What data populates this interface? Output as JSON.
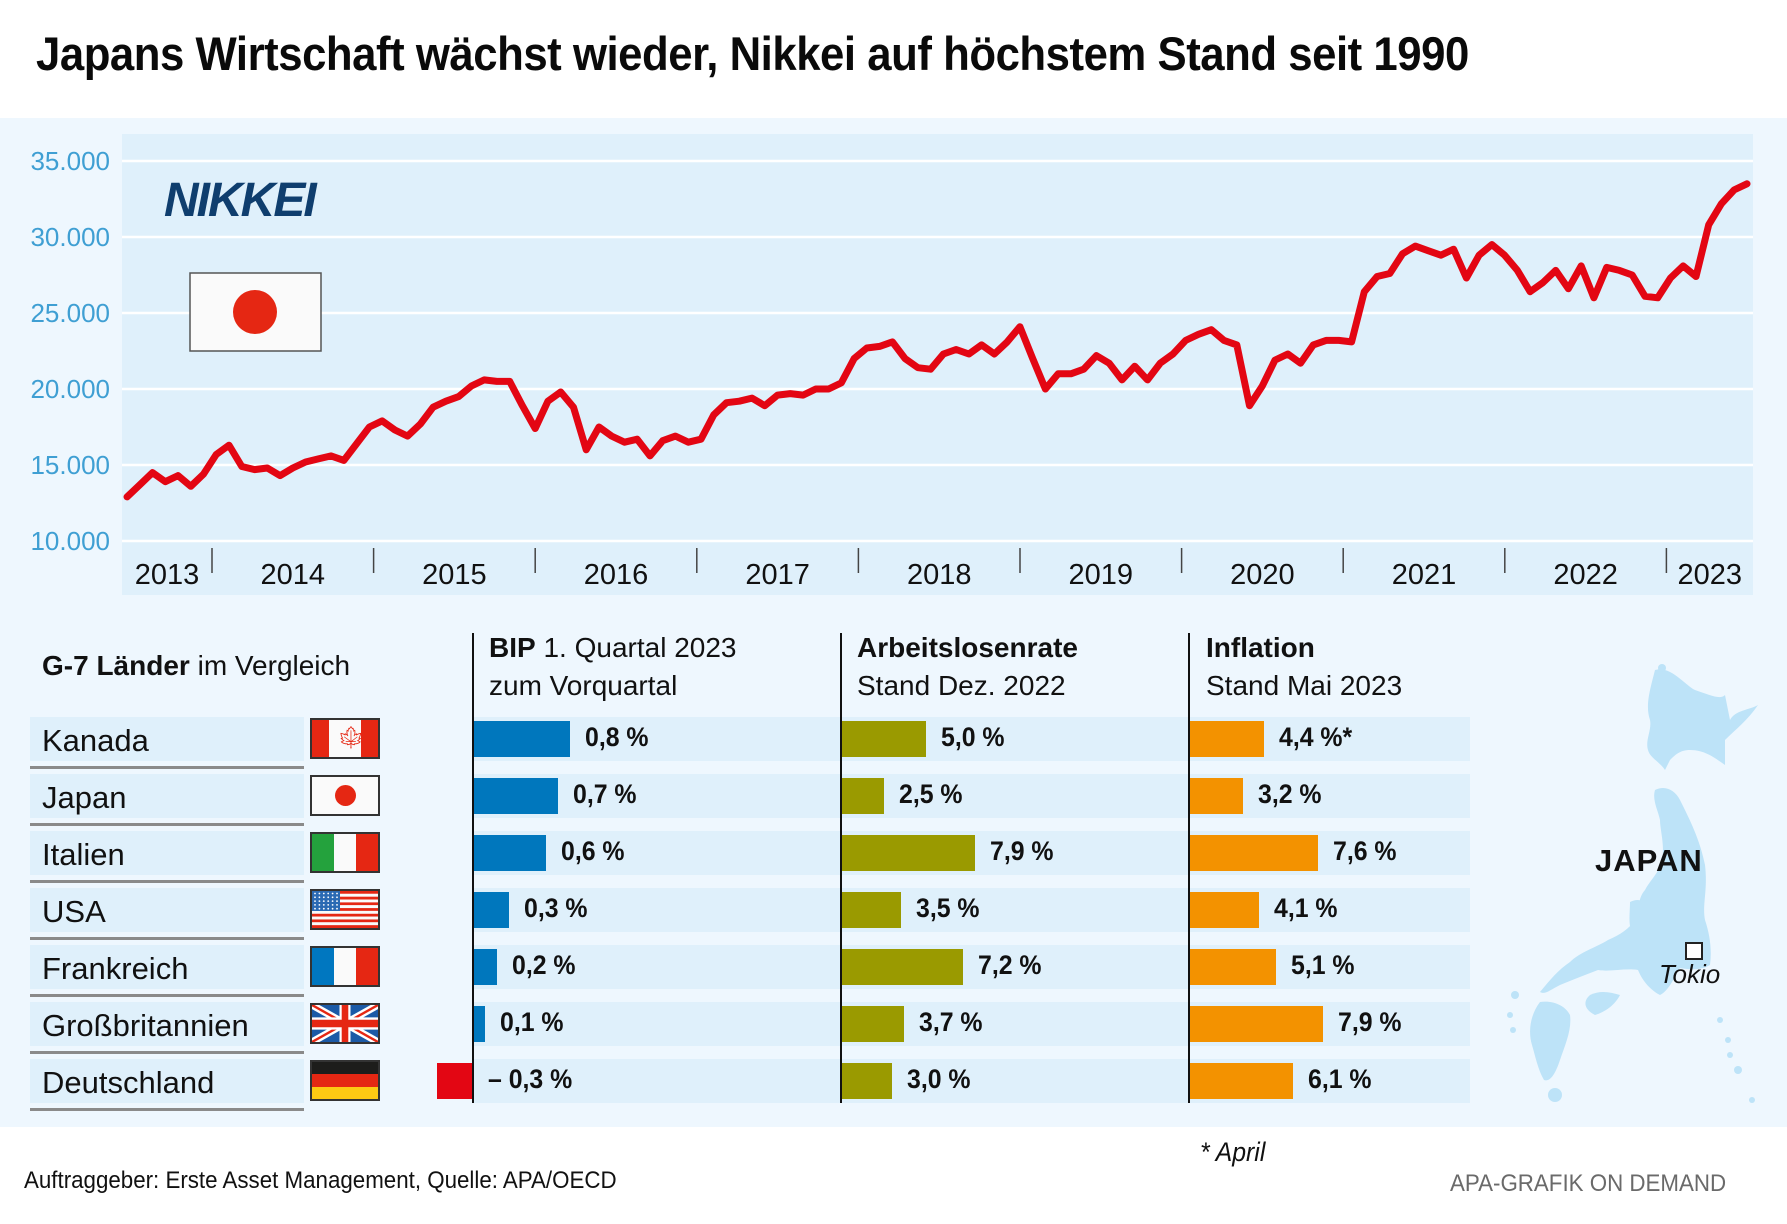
{
  "title": "Japans Wirtschaft wächst wieder, Nikkei auf höchstem Stand seit 1990",
  "logo_text": "NIKKEI",
  "colors": {
    "line": "#e30613",
    "bip": "#0077bd",
    "bip_negative": "#e30613",
    "unemployment": "#9a9a00",
    "inflation": "#f39200",
    "logo": "#0f3e6e",
    "axis_labels": "#3f9fd3"
  },
  "chart_data": {
    "type": "line",
    "title": "NIKKEI",
    "xlabel": "",
    "ylabel": "",
    "ylim": [
      10000,
      35000
    ],
    "yticks": [
      10000,
      15000,
      20000,
      25000,
      30000,
      35000
    ],
    "ytick_labels": [
      "10.000",
      "15.000",
      "20.000",
      "25.000",
      "30.000",
      "35.000"
    ],
    "xticks": [
      "2013",
      "2014",
      "2015",
      "2016",
      "2017",
      "2018",
      "2019",
      "2020",
      "2021",
      "2022",
      "2023"
    ],
    "grid": true,
    "legend": "none",
    "x_start": "2013-06",
    "x_end": "2023-06",
    "frequency": "monthly",
    "series": [
      {
        "name": "Nikkei 225",
        "values": [
          12900,
          13700,
          14500,
          13900,
          14300,
          13600,
          14400,
          15700,
          16300,
          14900,
          14700,
          14800,
          14300,
          14800,
          15200,
          15400,
          15600,
          15300,
          16400,
          17500,
          17900,
          17300,
          16900,
          17700,
          18800,
          19200,
          19500,
          20200,
          20600,
          20500,
          20500,
          18900,
          17400,
          19200,
          19800,
          18800,
          16000,
          17500,
          16900,
          16500,
          16700,
          15600,
          16600,
          16900,
          16500,
          16700,
          18300,
          19100,
          19200,
          19400,
          18900,
          19600,
          19700,
          19600,
          20000,
          20000,
          20400,
          22000,
          22700,
          22800,
          23100,
          22000,
          21400,
          21300,
          22300,
          22600,
          22300,
          22900,
          22300,
          23100,
          24100,
          22000,
          20000,
          21000,
          21000,
          21300,
          22200,
          21700,
          20600,
          21500,
          20600,
          21700,
          22300,
          23200,
          23600,
          23900,
          23200,
          22900,
          18900,
          20200,
          21900,
          22300,
          21700,
          22900,
          23200,
          23200,
          23100,
          26400,
          27400,
          27600,
          28900,
          29400,
          29100,
          28800,
          29200,
          27300,
          28800,
          29500,
          28800,
          27800,
          26400,
          27000,
          27800,
          26600,
          28100,
          26000,
          28000,
          27800,
          27500,
          26100,
          26000,
          27300,
          28100,
          27400,
          30800,
          32200,
          33100,
          33500
        ]
      }
    ]
  },
  "section_heading": {
    "bold": "G-7 Länder",
    "rest": " im Vergleich"
  },
  "columns": [
    {
      "key": "bip",
      "title": "BIP",
      "subtitle_inline": " 1. Quartal 2023",
      "subtitle": "zum Vorquartal"
    },
    {
      "key": "unemployment",
      "title": "Arbeitslosenrate",
      "subtitle_inline": "",
      "subtitle": "Stand Dez. 2022"
    },
    {
      "key": "inflation",
      "title": "Inflation",
      "subtitle_inline": "",
      "subtitle": "Stand Mai 2023"
    }
  ],
  "countries": [
    {
      "name": "Kanada",
      "flag": "canada-flag",
      "bip": 0.8,
      "bip_label": "0,8 %",
      "unemployment": 5.0,
      "unemployment_label": "5,0 %",
      "inflation": 4.4,
      "inflation_label": "4,4 %*"
    },
    {
      "name": "Japan",
      "flag": "japan-flag",
      "bip": 0.7,
      "bip_label": "0,7 %",
      "unemployment": 2.5,
      "unemployment_label": "2,5 %",
      "inflation": 3.2,
      "inflation_label": "3,2 %"
    },
    {
      "name": "Italien",
      "flag": "italy-flag",
      "bip": 0.6,
      "bip_label": "0,6 %",
      "unemployment": 7.9,
      "unemployment_label": "7,9 %",
      "inflation": 7.6,
      "inflation_label": "7,6 %"
    },
    {
      "name": "USA",
      "flag": "usa-flag",
      "bip": 0.3,
      "bip_label": "0,3 %",
      "unemployment": 3.5,
      "unemployment_label": "3,5 %",
      "inflation": 4.1,
      "inflation_label": "4,1 %"
    },
    {
      "name": "Frankreich",
      "flag": "france-flag",
      "bip": 0.2,
      "bip_label": "0,2 %",
      "unemployment": 7.2,
      "unemployment_label": "7,2 %",
      "inflation": 5.1,
      "inflation_label": "5,1 %"
    },
    {
      "name": "Großbritannien",
      "flag": "uk-flag",
      "bip": 0.1,
      "bip_label": "0,1 %",
      "unemployment": 3.7,
      "unemployment_label": "3,7 %",
      "inflation": 7.9,
      "inflation_label": "7,9 %"
    },
    {
      "name": "Deutschland",
      "flag": "germany-flag",
      "bip": -0.3,
      "bip_label": "– 0,3 %",
      "unemployment": 3.0,
      "unemployment_label": "3,0 %",
      "inflation": 6.1,
      "inflation_label": "6,1 %"
    }
  ],
  "map": {
    "country_label": "JAPAN",
    "city_label": "Tokio"
  },
  "footnote": "* April",
  "footer": {
    "source": "Auftraggeber: Erste Asset Management, Quelle: APA/OECD",
    "credit": "APA-GRAFIK ON DEMAND"
  }
}
